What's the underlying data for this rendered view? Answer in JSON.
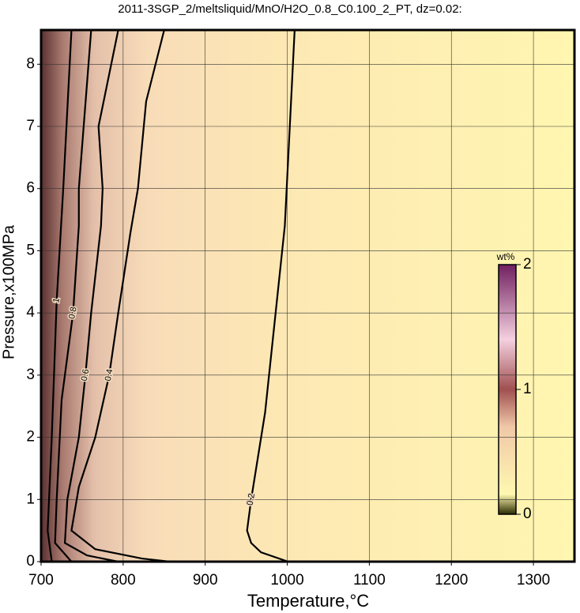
{
  "chart_data": {
    "type": "contour",
    "title": "2011-3SGP_2/meltsliquid/MnO/H2O_0.8_C0.100_2_PT, dz=0.02:",
    "x_label": "Temperature,°C",
    "y_label": "Pressure,x100MPa",
    "xlim": [
      700,
      1350
    ],
    "ylim": [
      0,
      8.55
    ],
    "xticks": [
      700,
      800,
      900,
      1000,
      1100,
      1200,
      1300
    ],
    "yticks": [
      0,
      1,
      2,
      3,
      4,
      5,
      6,
      7,
      8
    ],
    "grid": true,
    "contours": [
      {
        "level": 0.2,
        "x": [
          1001,
          968,
          956,
          951,
          956,
          973,
          997,
          1009
        ],
        "y": [
          0,
          0.15,
          0.3,
          0.5,
          1,
          2.4,
          5.4,
          8.55
        ]
      },
      {
        "level": 0.4,
        "x": [
          857,
          823,
          766,
          737,
          746,
          766,
          783,
          794,
          809,
          818,
          828,
          850
        ],
        "y": [
          0,
          0.05,
          0.2,
          0.5,
          1.2,
          2,
          3,
          4,
          5.3,
          6,
          7.4,
          8.55
        ]
      },
      {
        "level": 0.6,
        "x": [
          794,
          756,
          729,
          732,
          746,
          754,
          761,
          773,
          775,
          770,
          794
        ],
        "y": [
          0,
          0.1,
          0.3,
          1,
          2,
          3,
          4,
          5.4,
          6,
          7,
          8.55
        ]
      },
      {
        "level": 0.8,
        "x": [
          737,
          717,
          719,
          725,
          739,
          746,
          746,
          761
        ],
        "y": [
          0,
          0.3,
          1,
          2.6,
          4,
          5.4,
          6,
          8.55
        ]
      },
      {
        "level": 1,
        "x": [
          713,
          708,
          713,
          719,
          727,
          737
        ],
        "y": [
          0,
          0.5,
          2,
          4.2,
          6,
          8.55
        ]
      }
    ],
    "colorbar": {
      "label": "wt%",
      "lim": [
        0,
        2
      ],
      "ticks": [
        0,
        1,
        2
      ]
    }
  }
}
